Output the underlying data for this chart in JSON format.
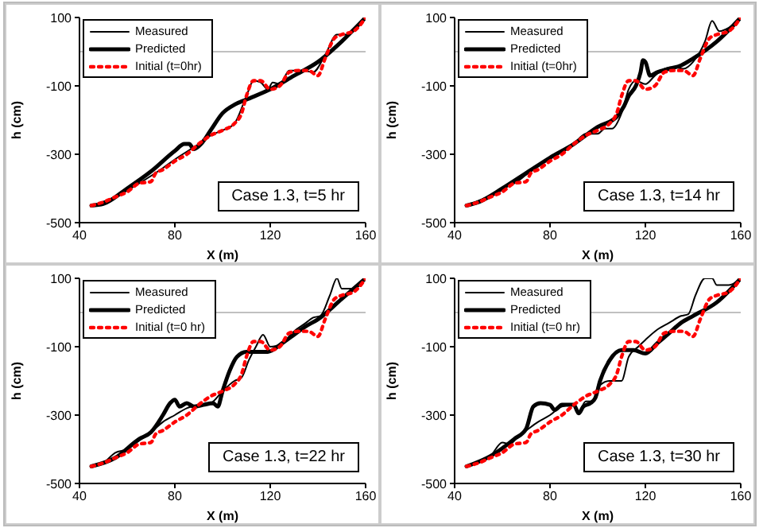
{
  "chart_data": [
    {
      "type": "line",
      "xlabel": "X (m)",
      "ylabel": "h (cm)",
      "xlim": [
        40,
        160
      ],
      "xticks": [
        40,
        80,
        120,
        160
      ],
      "ylim": [
        -500,
        100
      ],
      "yticks": [
        -500,
        -300,
        -100,
        100
      ],
      "legend": "top left",
      "ref_lines": [
        {
          "axis": "y",
          "value": 0,
          "color": "#c0c0c0"
        }
      ],
      "annotations": [
        "Case 1.3, t=5 hr"
      ],
      "series": [
        {
          "name": "Measured",
          "color": "#000000",
          "line_style": "solid",
          "x": [
            45,
            55,
            65,
            75,
            80,
            90,
            95,
            100,
            105,
            110,
            113,
            116,
            119,
            121,
            124,
            128,
            134,
            138,
            143,
            148,
            152,
            156,
            160
          ],
          "values": [
            -450,
            -425,
            -385,
            -340,
            -315,
            -270,
            -245,
            -230,
            -210,
            -130,
            -85,
            -90,
            -110,
            -90,
            -95,
            -55,
            -55,
            -60,
            -10,
            50,
            50,
            70,
            100
          ]
        },
        {
          "name": "Predicted",
          "color": "#000000",
          "line_style": "solid",
          "x": [
            45,
            50,
            60,
            70,
            80,
            84,
            86,
            88,
            91,
            95,
            100,
            105,
            110,
            120,
            130,
            140,
            150,
            160
          ],
          "values": [
            -450,
            -445,
            -400,
            -350,
            -290,
            -270,
            -270,
            -285,
            -270,
            -230,
            -180,
            -155,
            -140,
            -110,
            -70,
            -30,
            30,
            100
          ]
        },
        {
          "name": "Initial (t=0hr)",
          "color": "#ff0000",
          "line_style": "dotted",
          "x": [
            45,
            50,
            55,
            60,
            65,
            70,
            72,
            75,
            80,
            85,
            90,
            95,
            100,
            105,
            108,
            110,
            113,
            116,
            120,
            124,
            128,
            132,
            136,
            140,
            143,
            147,
            150,
            155,
            160
          ],
          "values": [
            -450,
            -440,
            -425,
            -410,
            -385,
            -380,
            -355,
            -345,
            -320,
            -300,
            -270,
            -245,
            -230,
            -210,
            -180,
            -130,
            -85,
            -85,
            -110,
            -100,
            -60,
            -55,
            -55,
            -70,
            -20,
            40,
            50,
            60,
            100
          ]
        }
      ]
    },
    {
      "type": "line",
      "xlabel": "X (m)",
      "ylabel": "h (cm)",
      "xlim": [
        40,
        160
      ],
      "xticks": [
        40,
        80,
        120,
        160
      ],
      "ylim": [
        -500,
        100
      ],
      "yticks": [
        -500,
        -300,
        -100,
        100
      ],
      "legend": "top left",
      "ref_lines": [
        {
          "axis": "y",
          "value": 0,
          "color": "#c0c0c0"
        }
      ],
      "annotations": [
        "Case 1.3, t=14 hr"
      ],
      "series": [
        {
          "name": "Measured",
          "color": "#000000",
          "line_style": "solid",
          "x": [
            45,
            55,
            60,
            62,
            65,
            70,
            80,
            90,
            95,
            100,
            103,
            106,
            110,
            113,
            116,
            120,
            124,
            128,
            132,
            136,
            140,
            145,
            148,
            151,
            155,
            160
          ],
          "values": [
            -450,
            -420,
            -400,
            -390,
            -385,
            -360,
            -310,
            -270,
            -240,
            -240,
            -225,
            -225,
            -180,
            -110,
            -85,
            -95,
            -70,
            -50,
            -45,
            -50,
            -30,
            30,
            90,
            60,
            70,
            100
          ]
        },
        {
          "name": "Predicted",
          "color": "#000000",
          "line_style": "solid",
          "x": [
            45,
            50,
            60,
            70,
            80,
            90,
            100,
            108,
            111,
            113,
            116,
            118,
            119,
            120,
            122,
            125,
            130,
            135,
            140,
            150,
            160
          ],
          "values": [
            -450,
            -440,
            -400,
            -355,
            -310,
            -270,
            -220,
            -190,
            -160,
            -130,
            -100,
            -60,
            -25,
            -30,
            -70,
            -60,
            -50,
            -40,
            -20,
            30,
            100
          ]
        },
        {
          "name": "Initial (t=0hr)",
          "color": "#ff0000",
          "line_style": "dotted",
          "x": [
            45,
            50,
            55,
            60,
            65,
            70,
            72,
            75,
            80,
            85,
            90,
            95,
            100,
            105,
            108,
            110,
            113,
            116,
            120,
            124,
            128,
            132,
            136,
            140,
            143,
            147,
            150,
            155,
            160
          ],
          "values": [
            -450,
            -440,
            -425,
            -410,
            -385,
            -380,
            -355,
            -345,
            -320,
            -300,
            -270,
            -245,
            -230,
            -210,
            -180,
            -130,
            -85,
            -85,
            -110,
            -100,
            -60,
            -55,
            -55,
            -70,
            -20,
            40,
            50,
            60,
            100
          ]
        }
      ]
    },
    {
      "type": "line",
      "xlabel": "X (m)",
      "ylabel": "h (cm)",
      "xlim": [
        40,
        160
      ],
      "xticks": [
        40,
        80,
        120,
        160
      ],
      "ylim": [
        -500,
        100
      ],
      "yticks": [
        -500,
        -300,
        -100,
        100
      ],
      "legend": "top left",
      "ref_lines": [
        {
          "axis": "y",
          "value": 0,
          "color": "#c0c0c0"
        }
      ],
      "annotations": [
        "Case 1.3, t=22 hr"
      ],
      "series": [
        {
          "name": "Measured",
          "color": "#000000",
          "line_style": "solid",
          "x": [
            45,
            50,
            55,
            60,
            65,
            70,
            75,
            80,
            85,
            90,
            95,
            100,
            105,
            108,
            111,
            114,
            117,
            120,
            125,
            130,
            135,
            138,
            141,
            145,
            148,
            150,
            155,
            160
          ],
          "values": [
            -450,
            -440,
            -410,
            -400,
            -375,
            -350,
            -320,
            -300,
            -280,
            -270,
            -265,
            -230,
            -200,
            -190,
            -140,
            -100,
            -65,
            -100,
            -90,
            -55,
            -30,
            -15,
            -10,
            50,
            100,
            70,
            70,
            100
          ]
        },
        {
          "name": "Predicted",
          "color": "#000000",
          "line_style": "solid",
          "x": [
            45,
            55,
            65,
            70,
            75,
            78,
            80,
            82,
            85,
            88,
            92,
            96,
            98,
            100,
            103,
            106,
            110,
            116,
            119,
            125,
            130,
            135,
            140,
            150,
            160
          ],
          "values": [
            -450,
            -425,
            -370,
            -350,
            -300,
            -265,
            -255,
            -275,
            -265,
            -275,
            -270,
            -265,
            -275,
            -230,
            -170,
            -130,
            -115,
            -115,
            -115,
            -90,
            -65,
            -40,
            -20,
            40,
            100
          ]
        },
        {
          "name": "Initial (t=0 hr)",
          "color": "#ff0000",
          "line_style": "dotted",
          "x": [
            45,
            50,
            55,
            60,
            65,
            70,
            72,
            75,
            80,
            85,
            90,
            95,
            100,
            105,
            108,
            110,
            113,
            116,
            120,
            124,
            128,
            132,
            136,
            140,
            143,
            147,
            150,
            155,
            160
          ],
          "values": [
            -450,
            -440,
            -425,
            -410,
            -385,
            -380,
            -355,
            -345,
            -320,
            -300,
            -270,
            -245,
            -230,
            -210,
            -180,
            -130,
            -85,
            -85,
            -110,
            -100,
            -60,
            -55,
            -55,
            -70,
            -20,
            40,
            50,
            60,
            100
          ]
        }
      ]
    },
    {
      "type": "line",
      "xlabel": "X (m)",
      "ylabel": "h (cm)",
      "xlim": [
        40,
        160
      ],
      "xticks": [
        40,
        80,
        120,
        160
      ],
      "ylim": [
        -500,
        100
      ],
      "yticks": [
        -500,
        -300,
        -100,
        100
      ],
      "legend": "top left",
      "ref_lines": [
        {
          "axis": "y",
          "value": 0,
          "color": "#c0c0c0"
        }
      ],
      "annotations": [
        "Case 1.3, t=30 hr"
      ],
      "series": [
        {
          "name": "Measured",
          "color": "#000000",
          "line_style": "solid",
          "x": [
            45,
            50,
            55,
            60,
            63,
            67,
            70,
            75,
            80,
            85,
            90,
            92,
            95,
            98,
            100,
            105,
            110,
            113,
            117,
            120,
            125,
            130,
            135,
            138,
            141,
            145,
            148,
            150,
            155,
            160
          ],
          "values": [
            -450,
            -440,
            -420,
            -380,
            -385,
            -360,
            -345,
            -320,
            -300,
            -275,
            -270,
            -290,
            -260,
            -260,
            -220,
            -200,
            -200,
            -130,
            -100,
            -80,
            -50,
            -30,
            -10,
            -5,
            50,
            100,
            100,
            80,
            80,
            100
          ]
        },
        {
          "name": "Predicted",
          "color": "#000000",
          "line_style": "solid",
          "x": [
            45,
            55,
            65,
            70,
            73,
            76,
            80,
            82,
            85,
            90,
            92,
            94,
            97,
            99,
            101,
            105,
            110,
            115,
            120,
            125,
            130,
            135,
            140,
            150,
            160
          ],
          "values": [
            -450,
            -420,
            -370,
            -340,
            -275,
            -265,
            -270,
            -285,
            -270,
            -270,
            -295,
            -275,
            -265,
            -250,
            -200,
            -140,
            -110,
            -110,
            -120,
            -90,
            -60,
            -30,
            -10,
            30,
            100
          ]
        },
        {
          "name": "Initial (t=0 hr)",
          "color": "#ff0000",
          "line_style": "dotted",
          "x": [
            45,
            50,
            55,
            60,
            65,
            70,
            72,
            75,
            80,
            85,
            90,
            95,
            100,
            105,
            108,
            110,
            113,
            116,
            120,
            124,
            128,
            132,
            136,
            140,
            143,
            147,
            150,
            155,
            160
          ],
          "values": [
            -450,
            -440,
            -425,
            -410,
            -385,
            -380,
            -355,
            -345,
            -320,
            -300,
            -270,
            -245,
            -230,
            -210,
            -180,
            -130,
            -85,
            -85,
            -110,
            -100,
            -60,
            -55,
            -55,
            -70,
            -20,
            40,
            50,
            60,
            100
          ]
        }
      ]
    }
  ]
}
